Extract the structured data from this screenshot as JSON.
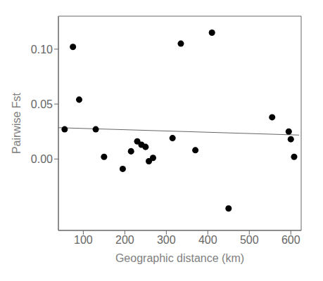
{
  "chart_data": {
    "type": "scatter",
    "xlabel": "Geographic distance (km)",
    "ylabel": "Pairwise Fst",
    "series": [
      {
        "type": "scatter",
        "color": "#000000",
        "x": [
          55,
          75,
          90,
          130,
          150,
          195,
          215,
          230,
          240,
          250,
          258,
          268,
          315,
          335,
          370,
          410,
          450,
          555,
          595,
          600,
          608
        ],
        "values": [
          0.027,
          0.102,
          0.054,
          0.027,
          0.002,
          -0.009,
          0.007,
          0.016,
          0.013,
          0.011,
          -0.002,
          0.001,
          0.019,
          0.105,
          0.008,
          0.115,
          -0.045,
          0.038,
          0.025,
          0.018,
          0.002
        ]
      },
      {
        "type": "line",
        "color": "#666666",
        "x": [
          40,
          620
        ],
        "values": [
          0.0285,
          0.0218
        ]
      }
    ],
    "xlim": [
      40,
      625
    ],
    "ylim": [
      -0.065,
      0.13
    ],
    "xticks": [
      100,
      200,
      300,
      400,
      500,
      600
    ],
    "yticks": [
      {
        "value": 0.0,
        "label": "0.00"
      },
      {
        "value": 0.05,
        "label": "0.05"
      },
      {
        "value": 0.1,
        "label": "0.10"
      }
    ],
    "grid": false
  }
}
